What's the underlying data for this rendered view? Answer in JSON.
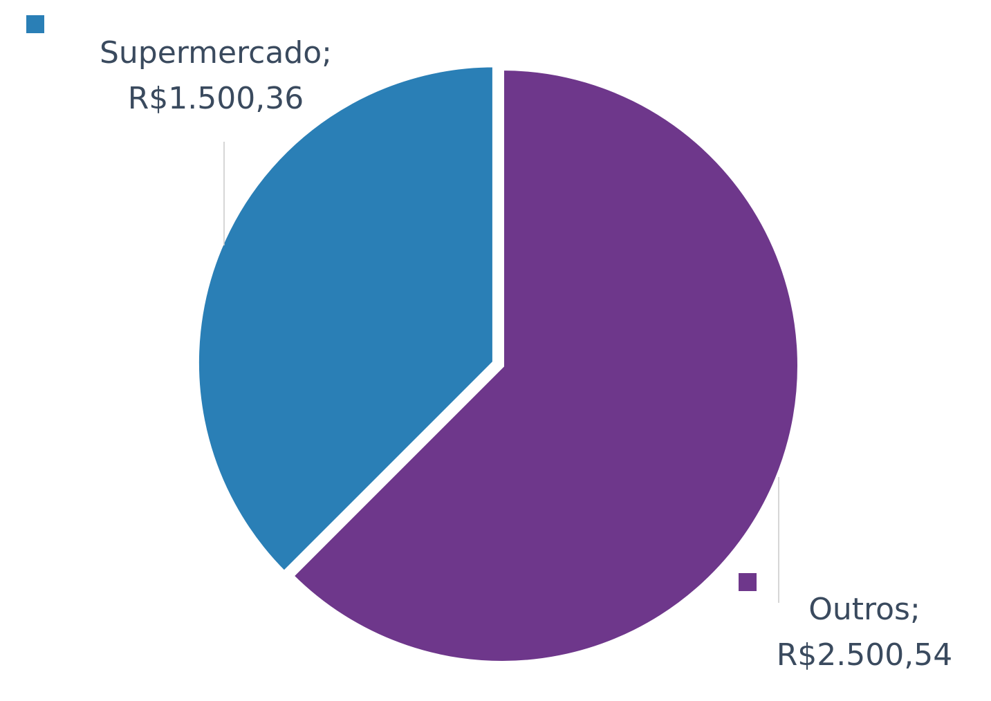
{
  "chart_data": {
    "type": "pie",
    "title": "",
    "categories": [
      "Supermercado",
      "Outros"
    ],
    "values": [
      1500.36,
      2500.54
    ],
    "labels": [
      {
        "category_text": "Supermercado;",
        "value_text": "R$1.500,36"
      },
      {
        "category_text": "Outros;",
        "value_text": "R$2.500,54"
      }
    ],
    "colors": [
      "#2a7fb6",
      "#6e378b"
    ],
    "start": "12 o'clock",
    "direction": "counterclockwise for Supermercado, clockwise for Outros",
    "legend": "none",
    "exploded_slice": "Supermercado"
  }
}
